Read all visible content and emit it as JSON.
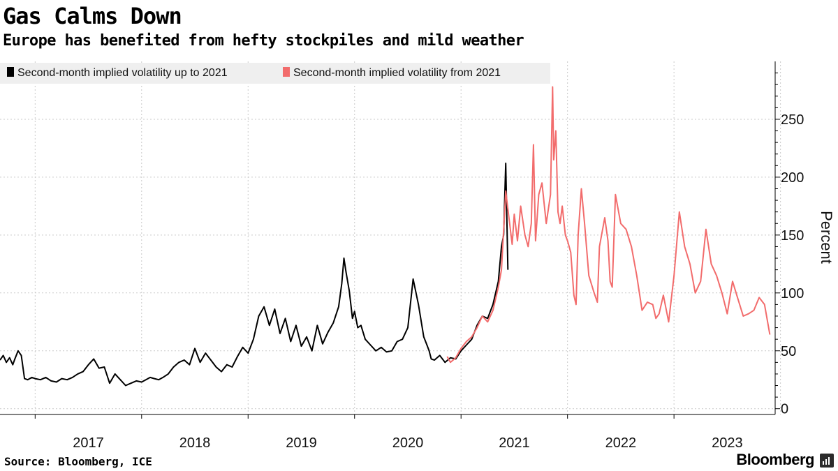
{
  "header": {
    "title": "Gas Calms Down",
    "subtitle": "Europe has benefited from hefty stockpiles and mild weather"
  },
  "footer": {
    "source": "Source: Bloomberg, ICE",
    "brand": "Bloomberg"
  },
  "colors": {
    "series_before": "#000000",
    "series_after": "#f26c6c",
    "grid": "#c9c9c9",
    "legend_bg": "#efefef"
  },
  "chart_data": {
    "type": "line",
    "title": "Gas Calms Down",
    "subtitle": "Europe has benefited from hefty stockpiles and mild weather",
    "xlabel": "",
    "ylabel": "Percent",
    "xlim": [
      2016.67,
      2023.95
    ],
    "ylim": [
      -5,
      300
    ],
    "yticks": [
      0,
      50,
      100,
      150,
      200,
      250
    ],
    "xticks": [
      "2017",
      "2018",
      "2019",
      "2020",
      "2021",
      "2022",
      "2023"
    ],
    "grid": true,
    "legend_position": "top-left",
    "series": [
      {
        "name": "Second-month implied volatility up to 2021",
        "color": "#000000",
        "x": [
          2016.67,
          2016.7,
          2016.73,
          2016.76,
          2016.79,
          2016.81,
          2016.84,
          2016.87,
          2016.9,
          2016.93,
          2016.97,
          2017.0,
          2017.05,
          2017.1,
          2017.15,
          2017.2,
          2017.25,
          2017.3,
          2017.35,
          2017.4,
          2017.45,
          2017.5,
          2017.55,
          2017.6,
          2017.65,
          2017.7,
          2017.75,
          2017.8,
          2017.85,
          2017.9,
          2017.95,
          2018.0,
          2018.04,
          2018.08,
          2018.12,
          2018.16,
          2018.2,
          2018.25,
          2018.3,
          2018.35,
          2018.4,
          2018.45,
          2018.5,
          2018.55,
          2018.6,
          2018.65,
          2018.7,
          2018.75,
          2018.8,
          2018.85,
          2018.9,
          2018.95,
          2019.0,
          2019.05,
          2019.1,
          2019.15,
          2019.2,
          2019.25,
          2019.3,
          2019.35,
          2019.4,
          2019.45,
          2019.5,
          2019.55,
          2019.6,
          2019.65,
          2019.7,
          2019.75,
          2019.8,
          2019.85,
          2019.88,
          2019.9,
          2019.92,
          2019.95,
          2019.98,
          2020.0,
          2020.03,
          2020.06,
          2020.1,
          2020.15,
          2020.2,
          2020.25,
          2020.3,
          2020.35,
          2020.4,
          2020.45,
          2020.5,
          2020.55,
          2020.6,
          2020.65,
          2020.68,
          2020.7,
          2020.72,
          2020.75,
          2020.8,
          2020.85,
          2020.9,
          2020.95,
          2021.0,
          2021.05,
          2021.1,
          2021.15,
          2021.2,
          2021.25,
          2021.3,
          2021.35,
          2021.38,
          2021.4,
          2021.42,
          2021.44
        ],
        "values": [
          42,
          46,
          40,
          44,
          38,
          43,
          50,
          46,
          26,
          25,
          27,
          26,
          25,
          27,
          24,
          23,
          26,
          25,
          27,
          30,
          32,
          38,
          43,
          35,
          36,
          22,
          30,
          25,
          20,
          22,
          24,
          23,
          25,
          27,
          26,
          25,
          27,
          30,
          36,
          40,
          42,
          38,
          52,
          40,
          48,
          42,
          36,
          32,
          38,
          36,
          45,
          53,
          48,
          60,
          80,
          88,
          72,
          86,
          65,
          78,
          58,
          72,
          54,
          62,
          50,
          72,
          56,
          66,
          74,
          88,
          108,
          130,
          118,
          102,
          78,
          84,
          70,
          72,
          60,
          55,
          50,
          53,
          49,
          50,
          58,
          60,
          70,
          112,
          90,
          62,
          55,
          50,
          43,
          42,
          46,
          40,
          44,
          43,
          50,
          55,
          60,
          72,
          80,
          78,
          90,
          110,
          140,
          150,
          212,
          120
        ]
      },
      {
        "name": "Second-month implied volatility from 2021",
        "color": "#f26c6c",
        "x": [
          2020.87,
          2020.9,
          2020.95,
          2021.0,
          2021.05,
          2021.1,
          2021.15,
          2021.2,
          2021.25,
          2021.3,
          2021.35,
          2021.38,
          2021.42,
          2021.45,
          2021.48,
          2021.5,
          2021.53,
          2021.56,
          2021.6,
          2021.63,
          2021.66,
          2021.68,
          2021.7,
          2021.73,
          2021.76,
          2021.8,
          2021.84,
          2021.86,
          2021.87,
          2021.89,
          2021.91,
          2021.93,
          2021.95,
          2021.98,
          2022.0,
          2022.03,
          2022.06,
          2022.08,
          2022.1,
          2022.13,
          2022.16,
          2022.2,
          2022.25,
          2022.28,
          2022.3,
          2022.35,
          2022.38,
          2022.4,
          2022.42,
          2022.45,
          2022.5,
          2022.55,
          2022.6,
          2022.65,
          2022.7,
          2022.75,
          2022.8,
          2022.83,
          2022.86,
          2022.9,
          2022.95,
          2023.0,
          2023.05,
          2023.1,
          2023.15,
          2023.2,
          2023.25,
          2023.3,
          2023.35,
          2023.4,
          2023.45,
          2023.5,
          2023.55,
          2023.6,
          2023.65,
          2023.7,
          2023.75,
          2023.8,
          2023.85,
          2023.9
        ],
        "values": [
          45,
          40,
          44,
          52,
          58,
          62,
          70,
          80,
          75,
          85,
          105,
          120,
          188,
          165,
          142,
          168,
          145,
          175,
          150,
          140,
          160,
          228,
          145,
          185,
          195,
          160,
          185,
          278,
          215,
          240,
          170,
          160,
          175,
          150,
          145,
          135,
          98,
          90,
          150,
          190,
          160,
          115,
          100,
          92,
          140,
          165,
          145,
          110,
          105,
          185,
          160,
          155,
          140,
          115,
          85,
          92,
          90,
          78,
          82,
          98,
          75,
          115,
          170,
          140,
          125,
          100,
          110,
          155,
          125,
          115,
          100,
          82,
          110,
          95,
          80,
          82,
          85,
          96,
          90,
          64
        ]
      }
    ]
  }
}
